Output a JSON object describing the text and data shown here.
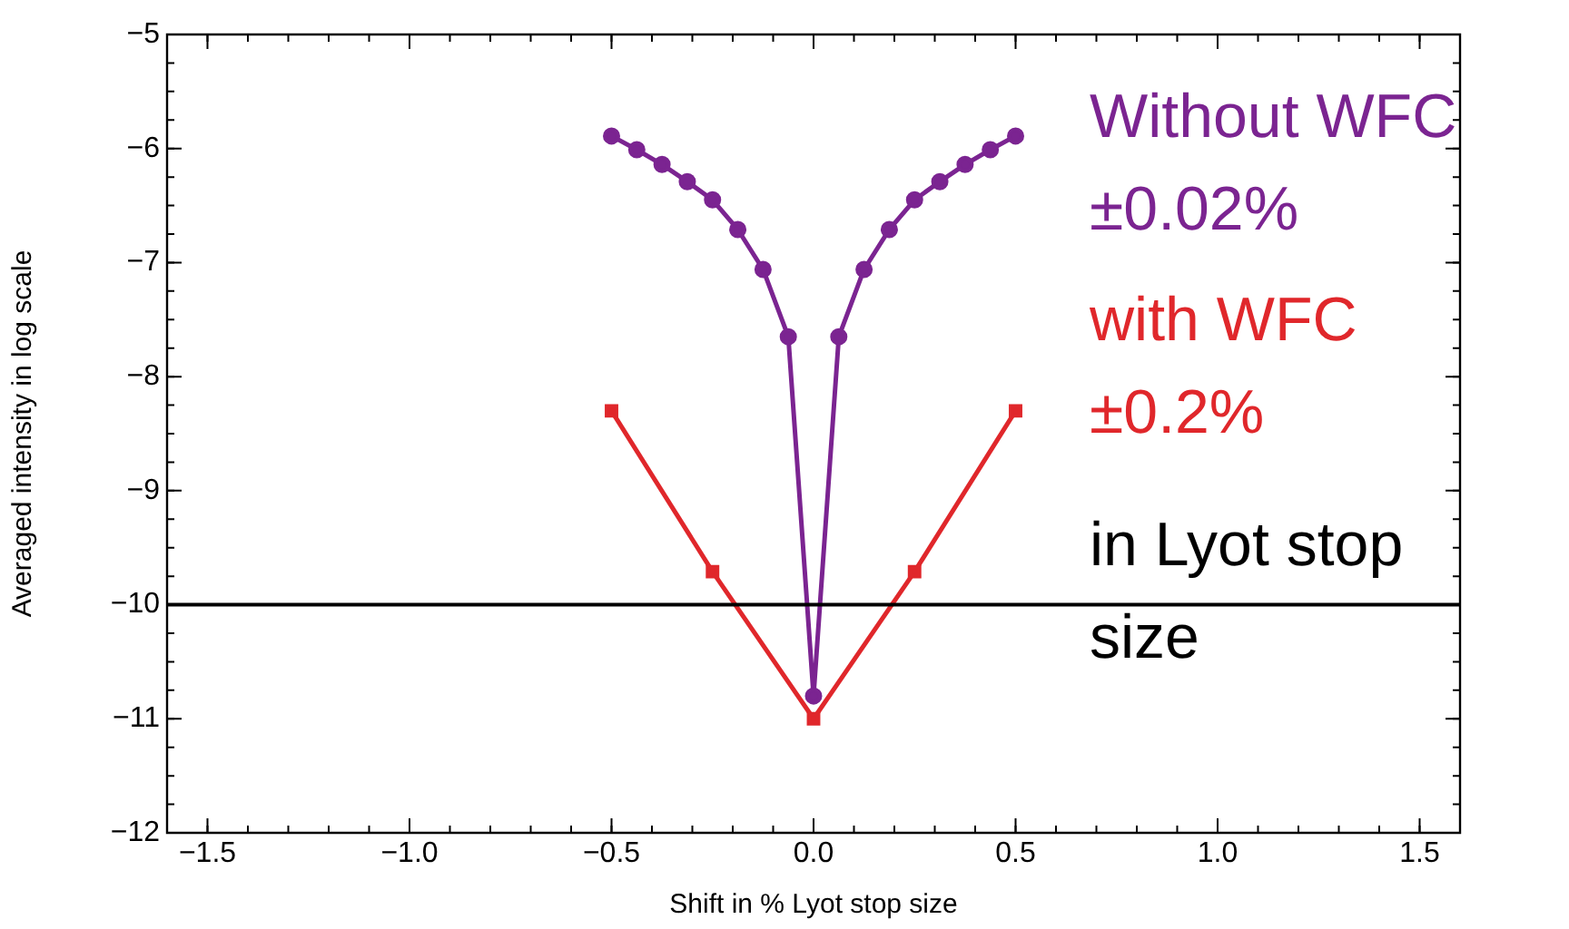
{
  "chart_data": {
    "type": "line",
    "xlabel": "Shift in % Lyot stop size",
    "ylabel": "Averaged intensity in log scale",
    "xlim": [
      -1.6,
      1.6
    ],
    "xticks": [
      {
        "value": -1.5,
        "label": "−1.5"
      },
      {
        "value": -1,
        "label": "−1.0"
      },
      {
        "value": -0.5,
        "label": "−0.5"
      },
      {
        "value": 0,
        "label": "0.0"
      },
      {
        "value": 0.5,
        "label": "0.5"
      },
      {
        "value": 1,
        "label": "1.0"
      },
      {
        "value": 1.5,
        "label": "1.5"
      }
    ],
    "ylim": [
      -12,
      -5
    ],
    "yticks": [
      {
        "value": -12,
        "label": "−12"
      },
      {
        "value": -11,
        "label": "−11"
      },
      {
        "value": -10,
        "label": "−10"
      },
      {
        "value": -9,
        "label": "−9"
      },
      {
        "value": -8,
        "label": "−8"
      },
      {
        "value": -7,
        "label": "−7"
      },
      {
        "value": -6,
        "label": "−6"
      },
      {
        "value": -5,
        "label": "−5"
      }
    ],
    "grid": false,
    "legend": false,
    "series": [
      {
        "name": "Without WFC ±0.02%",
        "color": "#7b2491",
        "marker": "circle",
        "x": [
          -0.5,
          -0.4375,
          -0.375,
          -0.3125,
          -0.25,
          -0.1875,
          -0.125,
          -0.0625,
          0,
          0.0625,
          0.125,
          0.1875,
          0.25,
          0.3125,
          0.375,
          0.4375,
          0.5
        ],
        "values": [
          -5.89,
          -6.01,
          -6.14,
          -6.29,
          -6.45,
          -6.71,
          -7.06,
          -7.65,
          -10.8,
          -7.65,
          -7.06,
          -6.71,
          -6.45,
          -6.29,
          -6.14,
          -6.01,
          -5.89
        ]
      },
      {
        "name": "with WFC ±0.2%",
        "color": "#e0272b",
        "marker": "square",
        "x": [
          -0.5,
          -0.25,
          0,
          0.25,
          0.5
        ],
        "values": [
          -8.3,
          -9.71,
          -11,
          -9.71,
          -8.3
        ]
      }
    ],
    "ref_lines": [
      {
        "axis": "y",
        "value": -10,
        "color": "#000000"
      }
    ],
    "annotations": [
      "in Lyot stop size"
    ]
  }
}
